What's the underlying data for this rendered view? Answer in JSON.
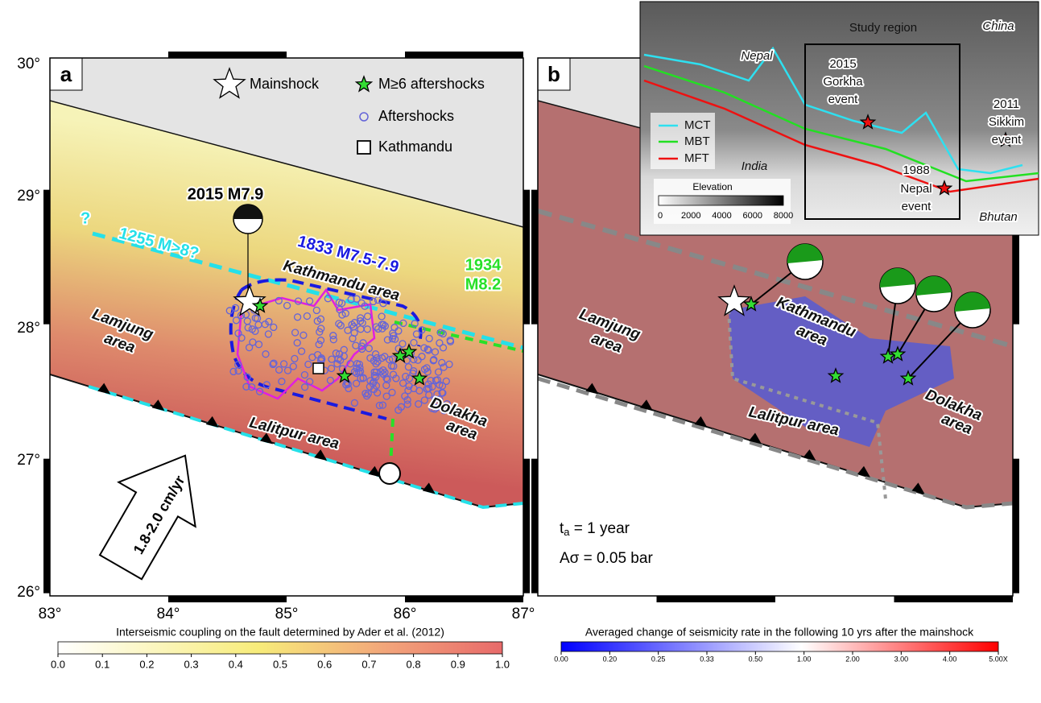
{
  "panel_a": {
    "label": "a",
    "legend": {
      "mainshock": "Mainshock",
      "large_aftershocks": "M≥6 aftershocks",
      "aftershocks": "Aftershocks",
      "kathmandu": "Kathmandu"
    },
    "event": "2015 M7.9",
    "rupture_1255": {
      "query": "?",
      "label": "1255 M>8?"
    },
    "rupture_1833": "1833 M7.5-7.9",
    "rupture_1934": [
      "1934",
      "M8.2"
    ],
    "areas": {
      "kathmandu": "Kathmandu area",
      "lamjung": [
        "Lamjung",
        "area"
      ],
      "dolakha": [
        "Dolakha",
        "area"
      ],
      "lalitpur": "Lalitpur area"
    },
    "convergence": "1.8-2.0 cm/yr"
  },
  "panel_b": {
    "label": "b",
    "areas": {
      "kathmandu": [
        "Kathmandu",
        "area"
      ],
      "lamjung": [
        "Lamjung",
        "area"
      ],
      "dolakha": [
        "Dolakha",
        "area"
      ],
      "lalitpur": "Lalitpur area"
    },
    "ta": {
      "symbol": "t",
      "subscript": "a",
      "text": " = 1 year"
    },
    "a_sigma": "Aσ = 0.05 bar"
  },
  "axes": {
    "latitude": [
      "30°",
      "29°",
      "28°",
      "27°",
      "26°"
    ],
    "longitude": [
      "83°",
      "84°",
      "85°",
      "86°",
      "87°"
    ]
  },
  "inset": {
    "study_region": "Study region",
    "china": "China",
    "nepal": "Nepal",
    "india": "India",
    "bhutan": "Bhutan",
    "gorkha": [
      "2015",
      "Gorkha",
      "event"
    ],
    "sikkim": [
      "2011",
      "Sikkim",
      "event"
    ],
    "nepal_1988": [
      "1988",
      "Nepal",
      "event"
    ],
    "legend": [
      "MCT",
      "MBT",
      "MFT"
    ],
    "elevation": "Elevation",
    "elevation_ticks": [
      "0",
      "2000",
      "4000",
      "6000",
      "8000"
    ]
  },
  "colorbars": [
    {
      "title": "Interseismic coupling on the fault determined by Ader et al. (2012)",
      "ticks": [
        "0.0",
        "0.1",
        "0.2",
        "0.3",
        "0.4",
        "0.5",
        "0.6",
        "0.7",
        "0.8",
        "0.9",
        "1.0"
      ]
    },
    {
      "title": "Averaged change of seismicity rate in the following 10 yrs after the mainshock",
      "ticks": [
        "0.00",
        "0.20",
        "0.25",
        "0.33",
        "0.50",
        "1.00",
        "2.00",
        "3.00",
        "4.00",
        "5.00X"
      ]
    }
  ]
}
